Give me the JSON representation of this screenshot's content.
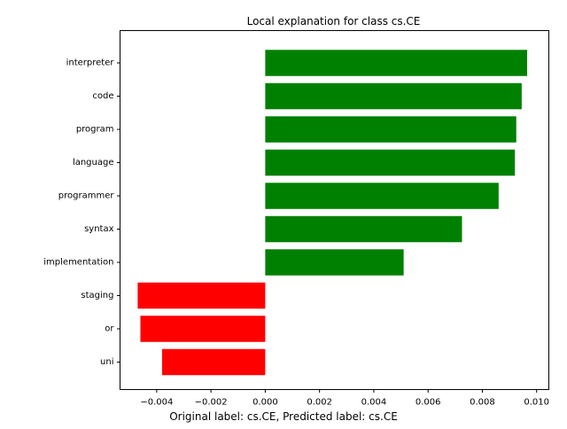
{
  "chart_data": {
    "type": "bar",
    "orientation": "horizontal",
    "title": "Local explanation for class cs.CE",
    "caption": "Original label: cs.CE, Predicted label: cs.CE",
    "categories": [
      "interpreter",
      "code",
      "program",
      "language",
      "programmer",
      "syntax",
      "implementation",
      "staging",
      "or",
      "uni"
    ],
    "values": [
      0.00965,
      0.00945,
      0.00925,
      0.0092,
      0.0086,
      0.00725,
      0.0051,
      -0.0047,
      -0.0046,
      -0.0038
    ],
    "xlim": [
      -0.00535,
      0.01045
    ],
    "xticks": [
      -0.004,
      -0.002,
      0.0,
      0.002,
      0.004,
      0.006,
      0.008,
      0.01
    ],
    "xtick_labels": [
      "−0.004",
      "−0.002",
      "0.000",
      "0.002",
      "0.004",
      "0.006",
      "0.008",
      "0.010"
    ],
    "xlabel": "",
    "ylabel": "",
    "grid": false,
    "legend": "none",
    "colors": {
      "positive": "#008000",
      "negative": "#ff0000",
      "axis": "#000000"
    }
  }
}
